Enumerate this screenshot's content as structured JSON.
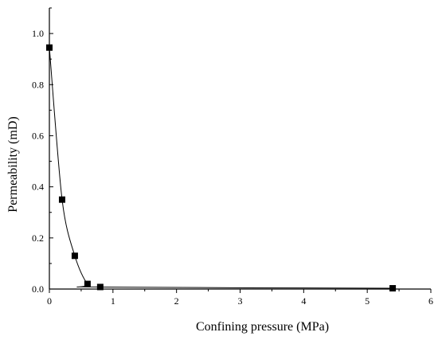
{
  "chart_data": {
    "type": "line",
    "title": "",
    "xlabel": "Confining pressure (MPa)",
    "ylabel": "Permeability (mD)",
    "xlim": [
      0,
      6
    ],
    "ylim": [
      0,
      1.1
    ],
    "xticks": [
      0,
      1,
      2,
      3,
      4,
      5,
      6
    ],
    "xtick_labels": [
      "0",
      "1",
      "2",
      "3",
      "4",
      "5",
      "6"
    ],
    "yticks": [
      0.0,
      0.2,
      0.4,
      0.6,
      0.8,
      1.0
    ],
    "ytick_labels": [
      "0.0",
      "0.2",
      "0.4",
      "0.6",
      "0.8",
      "1.0"
    ],
    "grid": false,
    "legend": false,
    "series": [
      {
        "marker": "square",
        "color": "#000000",
        "x": [
          0,
          0.2,
          0.4,
          0.6,
          0.8,
          5.4
        ],
        "y": [
          0.945,
          0.35,
          0.13,
          0.02,
          0.008,
          0.003
        ]
      }
    ]
  }
}
